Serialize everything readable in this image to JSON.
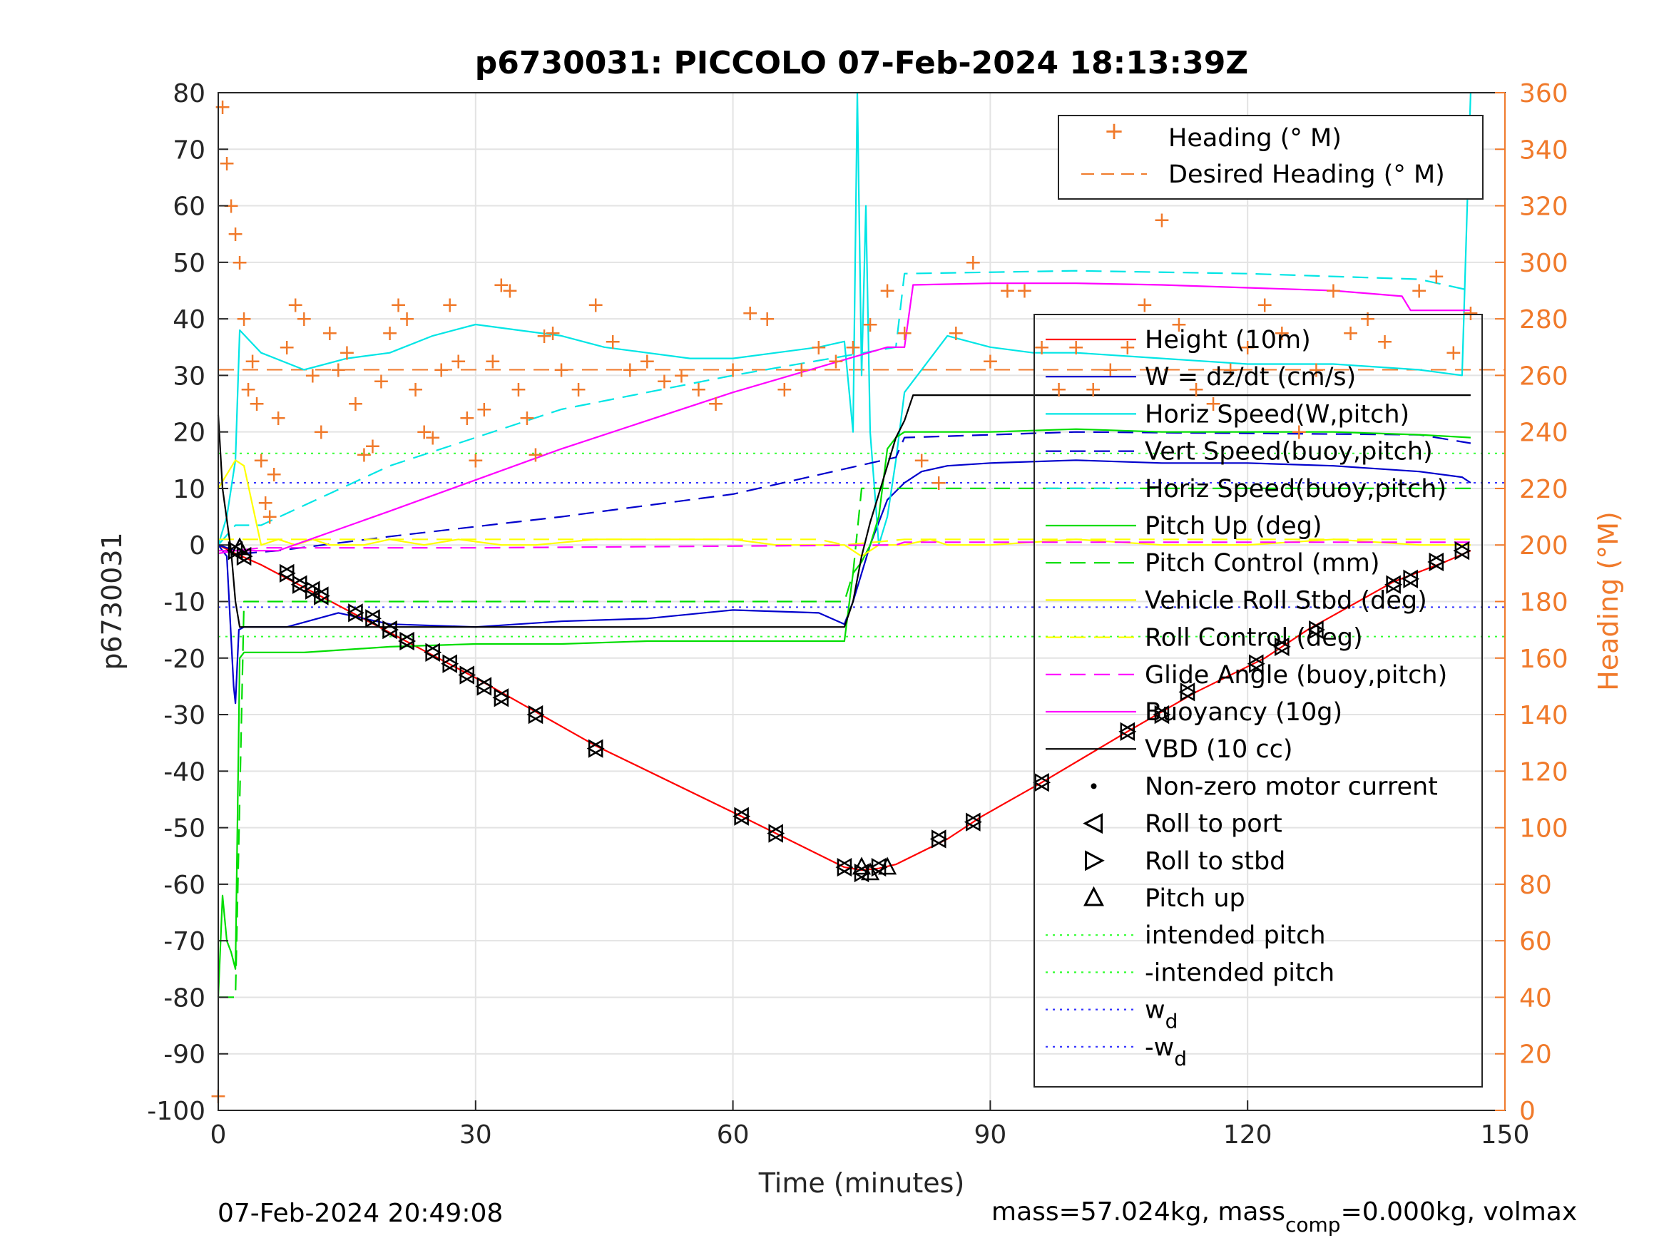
{
  "chart_data": {
    "type": "line",
    "title": "p6730031: PICCOLO 07-Feb-2024 18:13:39Z",
    "xlabel": "Time (minutes)",
    "ylabel": "p6730031",
    "y2label": "Heading (°M)",
    "xlim": [
      0,
      150
    ],
    "ylim": [
      -100,
      80
    ],
    "y2lim": [
      0,
      360
    ],
    "xticks": [
      "0",
      "30",
      "60",
      "90",
      "120",
      "150"
    ],
    "yticks": [
      "80",
      "70",
      "60",
      "50",
      "40",
      "30",
      "20",
      "10",
      "0",
      "-10",
      "-20",
      "-30",
      "-40",
      "-50",
      "-60",
      "-70",
      "-80",
      "-90",
      "-100"
    ],
    "y2ticks": [
      "360",
      "340",
      "320",
      "300",
      "280",
      "260",
      "240",
      "220",
      "200",
      "180",
      "160",
      "140",
      "120",
      "100",
      "80",
      "60",
      "40",
      "20",
      "0"
    ],
    "grid": true,
    "footer_left": "07-Feb-2024 20:49:08",
    "footer_right_prefix": "mass=57.024kg, mass",
    "footer_right_sub": "comp",
    "footer_right_suffix": "=0.000kg, volmax",
    "colors": {
      "heading": "#F07A2B",
      "height": "#FF0000",
      "w": "#0000CC",
      "horiz": "#00E5E5",
      "pitch": "#00DD00",
      "roll": "#FFFF00",
      "glide": "#FF00FF",
      "vbd": "#000000",
      "intended_pitch": "#33FF33",
      "wd": "#3333FF",
      "axis_right": "#F07A2B"
    },
    "legend_heading": [
      {
        "label": "Heading (° M)",
        "style": "plus"
      },
      {
        "label": "Desired Heading (° M)",
        "style": "dashed"
      }
    ],
    "legend_main": [
      {
        "label": "Height (10m)",
        "style": "solid",
        "color": "#FF0000"
      },
      {
        "label": "W = dz/dt (cm/s)",
        "style": "solid",
        "color": "#0000CC"
      },
      {
        "label": "Horiz Speed(W,pitch)",
        "style": "solid",
        "color": "#00E5E5"
      },
      {
        "label": "Vert Speed(buoy,pitch)",
        "style": "dashed",
        "color": "#0000CC"
      },
      {
        "label": "Horiz Speed(buoy,pitch)",
        "style": "dashed",
        "color": "#00E5E5"
      },
      {
        "label": "Pitch Up (deg)",
        "style": "solid",
        "color": "#00DD00"
      },
      {
        "label": "Pitch Control (mm)",
        "style": "dashed",
        "color": "#00DD00"
      },
      {
        "label": "Vehicle Roll Stbd (deg)",
        "style": "solid",
        "color": "#FFFF00"
      },
      {
        "label": "Roll Control (deg)",
        "style": "dashed",
        "color": "#FFFF00"
      },
      {
        "label": "Glide Angle (buoy,pitch)",
        "style": "dashed",
        "color": "#FF00FF"
      },
      {
        "label": "Buoyancy (10g)",
        "style": "solid",
        "color": "#FF00FF"
      },
      {
        "label": "VBD (10 cc)",
        "style": "solid",
        "color": "#000000"
      },
      {
        "label": "Non-zero motor current",
        "style": "dot",
        "color": "#000000"
      },
      {
        "label": "Roll to port",
        "style": "tri-left",
        "color": "#000000"
      },
      {
        "label": "Roll to stbd",
        "style": "tri-right",
        "color": "#000000"
      },
      {
        "label": "Pitch up",
        "style": "tri-up",
        "color": "#000000"
      },
      {
        "label": "intended pitch",
        "style": "dotted",
        "color": "#33FF33"
      },
      {
        "label": "-intended pitch",
        "style": "dotted",
        "color": "#33FF33"
      },
      {
        "label": "w",
        "sub": "d",
        "style": "dotted",
        "color": "#3333FF"
      },
      {
        "label": "-w",
        "sub": "d",
        "style": "dotted",
        "color": "#3333FF"
      }
    ],
    "reference_lines": {
      "intended_pitch": 16.2,
      "wd": 11.0
    },
    "desired_heading": 262,
    "series": [
      {
        "name": "Height (10m)",
        "color": "#FF0000",
        "style": "solid",
        "x": [
          0,
          2,
          5,
          10,
          15,
          20,
          25,
          30,
          37,
          44,
          61,
          65,
          73,
          75,
          77,
          79,
          85,
          89,
          96,
          106,
          110,
          114,
          122,
          127,
          137,
          143,
          146
        ],
        "y": [
          0,
          -1.5,
          -3.5,
          -7.5,
          -11.5,
          -15.5,
          -19.5,
          -23.5,
          -29.5,
          -35.5,
          -48,
          -51,
          -57,
          -57.5,
          -57.2,
          -56.5,
          -52,
          -48,
          -42,
          -33,
          -29.5,
          -26,
          -20,
          -15,
          -6.5,
          -3,
          -1
        ]
      },
      {
        "name": "W = dz/dt (cm/s)",
        "color": "#0000CC",
        "style": "solid",
        "x": [
          0,
          1,
          1.8,
          2,
          2.4,
          3,
          8,
          14,
          20,
          30,
          40,
          50,
          60,
          70,
          73,
          74,
          75,
          76,
          78,
          80,
          82,
          85,
          90,
          100,
          110,
          120,
          130,
          140,
          145,
          146
        ],
        "y": [
          0,
          -2,
          -25,
          -28,
          -15,
          -14.5,
          -14.5,
          -12,
          -14,
          -14.5,
          -13.5,
          -13,
          -11.5,
          -12,
          -14,
          -10,
          -5,
          0,
          8,
          11,
          13,
          14,
          14.5,
          15,
          14.5,
          14.5,
          14,
          13,
          12,
          11
        ]
      },
      {
        "name": "Horiz Speed(W,pitch)",
        "color": "#00E5E5",
        "style": "solid",
        "x": [
          0,
          1,
          2,
          2.5,
          5,
          10,
          15,
          20,
          25,
          30,
          35,
          40,
          45,
          50,
          55,
          60,
          65,
          70,
          73,
          74,
          74.5,
          75,
          75.5,
          76,
          77,
          78,
          79,
          80,
          85,
          90,
          95,
          100,
          110,
          120,
          130,
          140,
          145,
          146
        ],
        "y": [
          0,
          5,
          15,
          38,
          34,
          31,
          33,
          34,
          37,
          39,
          38,
          37,
          35,
          34,
          33,
          33,
          34,
          35,
          36,
          20,
          80,
          30,
          60,
          20,
          0,
          5,
          15,
          27,
          37,
          35,
          34,
          34,
          33,
          32,
          32,
          31,
          30,
          80
        ]
      },
      {
        "name": "Vert Speed(buoy,pitch)",
        "color": "#0000CC",
        "style": "dashed",
        "x": [
          0,
          3,
          7,
          20,
          40,
          60,
          79,
          80,
          100,
          140,
          146
        ],
        "y": [
          0,
          -1.5,
          -1,
          1.5,
          5,
          9,
          15.5,
          19,
          20,
          19.5,
          18
        ]
      },
      {
        "name": "Horiz Speed(buoy,pitch)",
        "color": "#00E5E5",
        "style": "dashed",
        "x": [
          0,
          2,
          5,
          20,
          40,
          60,
          79,
          80,
          100,
          120,
          140,
          146
        ],
        "y": [
          0,
          3.5,
          3.5,
          14,
          24,
          30,
          35,
          48,
          48.5,
          48,
          47,
          45
        ]
      },
      {
        "name": "Pitch Up (deg)",
        "color": "#00DD00",
        "style": "solid",
        "x": [
          0,
          0.5,
          1,
          1.5,
          2,
          2.5,
          3,
          10,
          20,
          30,
          40,
          50,
          60,
          70,
          73,
          74,
          75,
          76,
          77,
          78,
          79,
          80,
          90,
          100,
          110,
          120,
          130,
          140,
          146
        ],
        "y": [
          -80,
          -62,
          -70,
          -72,
          -75,
          -20,
          -19,
          -19,
          -18,
          -17.5,
          -17.5,
          -17,
          -17,
          -17,
          -17,
          -5,
          -3,
          0,
          5,
          17,
          19,
          20,
          20,
          20.5,
          20,
          20,
          20,
          19.5,
          19
        ]
      },
      {
        "name": "Pitch Control (mm)",
        "color": "#00DD00",
        "style": "dashed",
        "x": [
          0,
          0.5,
          1,
          2,
          3,
          73,
          74,
          75,
          146
        ],
        "y": [
          -80,
          -80,
          -80,
          -80,
          -10,
          -10,
          -5,
          10,
          10
        ]
      },
      {
        "name": "Vehicle Roll Stbd (deg)",
        "color": "#FFFF00",
        "style": "solid",
        "x": [
          0,
          2,
          3,
          5,
          7,
          9,
          11,
          13,
          17,
          20,
          24,
          28,
          33,
          37,
          44,
          60,
          65,
          73,
          75,
          77,
          80,
          83,
          85,
          90,
          100,
          110,
          120,
          130,
          140,
          146
        ],
        "y": [
          10,
          15,
          14,
          0,
          1,
          0,
          1,
          0,
          0,
          1,
          0,
          1,
          0,
          0,
          1,
          1,
          0,
          0,
          -2,
          0,
          0,
          1,
          0,
          0,
          1,
          0,
          0,
          1,
          0,
          0
        ]
      },
      {
        "name": "Roll Control (deg)",
        "color": "#FFFF00",
        "style": "dashed",
        "x": [
          0,
          5,
          10,
          20,
          30,
          40,
          50,
          60,
          70,
          73,
          80,
          90,
          100,
          110,
          120,
          130,
          140,
          146
        ],
        "y": [
          1,
          1,
          1,
          1,
          1,
          1,
          1,
          1,
          1,
          0,
          1,
          1,
          1,
          1,
          1,
          1,
          1,
          1
        ]
      },
      {
        "name": "Glide Angle (buoy,pitch)",
        "color": "#FF00FF",
        "style": "dashed",
        "x": [
          0,
          2,
          5,
          30,
          79,
          80,
          146
        ],
        "y": [
          -1.5,
          -1,
          -0.5,
          -0.5,
          0,
          0.5,
          0.5
        ]
      },
      {
        "name": "Buoyancy (10g)",
        "color": "#FF00FF",
        "style": "solid",
        "x": [
          0,
          3,
          7,
          20,
          40,
          60,
          78,
          80,
          81,
          90,
          100,
          110,
          120,
          130,
          138,
          139,
          146
        ],
        "y": [
          -1,
          -1,
          -1,
          6,
          17,
          27,
          35,
          35,
          46,
          46.3,
          46.3,
          46,
          45.5,
          45,
          44,
          41.5,
          41.5
        ]
      },
      {
        "name": "VBD (10 cc)",
        "color": "#000000",
        "style": "solid",
        "x": [
          0,
          0.5,
          1.5,
          2,
          2.5,
          73,
          74,
          75,
          76,
          77,
          78,
          79,
          80,
          81,
          146
        ],
        "y": [
          23,
          10,
          -1,
          -10,
          -14.5,
          -14.5,
          -10,
          -2,
          4,
          9,
          14,
          19,
          22,
          26.5,
          26.5
        ]
      }
    ],
    "heading_points": {
      "x": [
        0,
        0.5,
        1,
        1.5,
        2,
        2.5,
        3,
        3.5,
        4,
        4.5,
        5,
        5.5,
        6,
        6.5,
        7,
        8,
        9,
        10,
        11,
        12,
        13,
        14,
        15,
        16,
        17,
        18,
        19,
        20,
        21,
        22,
        23,
        24,
        25,
        26,
        27,
        28,
        29,
        30,
        31,
        32,
        33,
        34,
        35,
        36,
        37,
        38,
        39,
        40,
        42,
        44,
        46,
        48,
        50,
        52,
        54,
        56,
        58,
        60,
        62,
        64,
        66,
        68,
        70,
        72,
        74,
        76,
        78,
        80,
        82,
        84,
        86,
        88,
        90,
        92,
        94,
        96,
        98,
        100,
        102,
        104,
        106,
        108,
        110,
        112,
        114,
        116,
        118,
        120,
        122,
        124,
        126,
        128,
        130,
        132,
        134,
        136,
        138,
        140,
        142,
        144,
        146
      ],
      "y": [
        5,
        355,
        335,
        320,
        310,
        300,
        280,
        255,
        265,
        250,
        230,
        215,
        210,
        225,
        245,
        270,
        285,
        280,
        260,
        240,
        275,
        262,
        268,
        250,
        232,
        235,
        258,
        275,
        285,
        280,
        255,
        240,
        238,
        262,
        285,
        265,
        245,
        230,
        248,
        265,
        292,
        290,
        255,
        245,
        232,
        274,
        275,
        262,
        255,
        285,
        272,
        262,
        265,
        258,
        260,
        255,
        250,
        262,
        282,
        280,
        255,
        262,
        270,
        265,
        270,
        278,
        290,
        275,
        230,
        222,
        275,
        300,
        265,
        290,
        290,
        270,
        255,
        270,
        255,
        262,
        270,
        285,
        315,
        278,
        255,
        250,
        262,
        270,
        285,
        275,
        240,
        262,
        290,
        275,
        280,
        272,
        330,
        290,
        295,
        268,
        282
      ]
    },
    "markers": {
      "tri_left_x": [
        2,
        3,
        8,
        9.5,
        11,
        12,
        16,
        18,
        20,
        22,
        25,
        27,
        29,
        31,
        33,
        37,
        44,
        61,
        65,
        73,
        75,
        77,
        84,
        88,
        96,
        106,
        110,
        113,
        121,
        124,
        128,
        137,
        139,
        142,
        145
      ],
      "tri_left_y": [
        -1,
        -2,
        -5,
        -7,
        -8,
        -9,
        -12,
        -13,
        -15,
        -17,
        -19,
        -21,
        -23,
        -25,
        -27,
        -30,
        -36,
        -48,
        -51,
        -57,
        -58,
        -57,
        -52,
        -49,
        -42,
        -33,
        -30,
        -26,
        -21,
        -18,
        -15,
        -7,
        -6,
        -3,
        -1
      ],
      "pitch_up_x": [
        2.5,
        75,
        76,
        78
      ],
      "pitch_up_y": [
        -0.5,
        -57,
        -58,
        -57
      ]
    }
  }
}
